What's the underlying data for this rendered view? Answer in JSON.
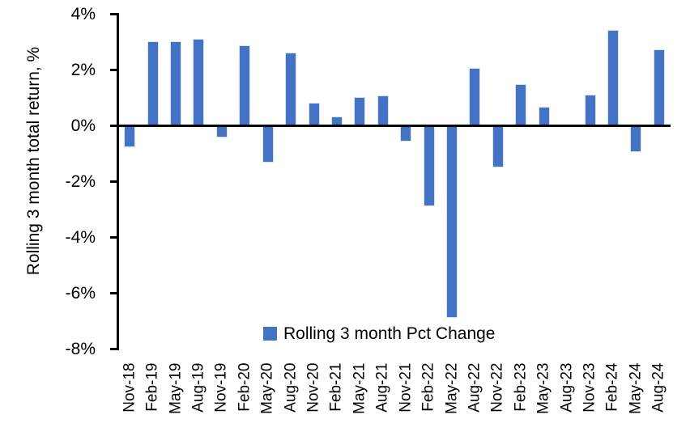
{
  "chart_data": {
    "type": "bar",
    "title": "",
    "xlabel": "",
    "ylabel": "Rolling 3 month total return, %",
    "legend_label": "Rolling 3 month Pct Change",
    "legend_position": "bottom-center",
    "grid": false,
    "ylim": [
      -8,
      4
    ],
    "yticks": [
      4,
      2,
      0,
      -2,
      -4,
      -6,
      -8
    ],
    "ytick_labels": [
      "4%",
      "2%",
      "0%",
      "-2%",
      "-4%",
      "-6%",
      "-8%"
    ],
    "categories": [
      "Nov-18",
      "Feb-19",
      "May-19",
      "Aug-19",
      "Nov-19",
      "Feb-20",
      "May-20",
      "Aug-20",
      "Nov-20",
      "Feb-21",
      "May-21",
      "Aug-21",
      "Nov-21",
      "Feb-22",
      "May-22",
      "Aug-22",
      "Nov-22",
      "Feb-23",
      "May-23",
      "Aug-23",
      "Nov-23",
      "Feb-24",
      "May-24",
      "Aug-24"
    ],
    "values": [
      -0.75,
      3.0,
      3.0,
      3.1,
      -0.4,
      2.85,
      -1.3,
      2.6,
      0.8,
      0.3,
      1.0,
      1.05,
      -0.55,
      -2.85,
      -6.85,
      2.05,
      -1.45,
      1.45,
      0.65,
      0.0,
      1.1,
      3.4,
      -0.9,
      2.7
    ],
    "bar_color": "#4472C4",
    "axis_color": "#000000",
    "text_color": "#000000"
  }
}
